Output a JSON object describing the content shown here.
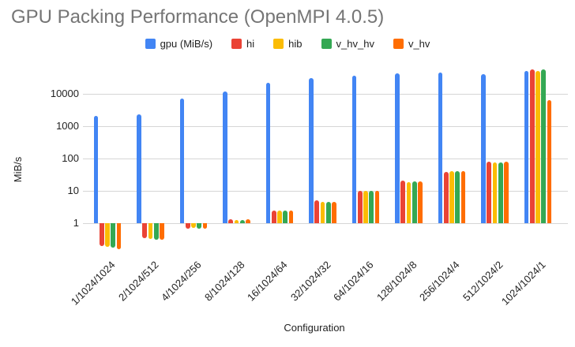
{
  "title": "GPU Packing Performance (OpenMPI 4.0.5)",
  "chart_data": {
    "type": "bar",
    "title": "GPU Packing Performance (OpenMPI 4.0.5)",
    "xlabel": "Configuration",
    "ylabel": "MiB/s",
    "y_scale": "log",
    "y_ticks": [
      1,
      10,
      100,
      1000,
      10000
    ],
    "ylim": [
      0.1,
      79000
    ],
    "grid": true,
    "legend_position": "top",
    "categories": [
      "1/1024/1024",
      "2/1024/512",
      "4/1024/256",
      "8/1024/128",
      "16/1024/64",
      "32/1024/32",
      "64/1024/16",
      "128/1024/8",
      "256/1024/4",
      "512/1024/2",
      "1024/1024/1"
    ],
    "series": [
      {
        "name": "gpu (MiB/s)",
        "color": "#4285F4",
        "values": [
          2150,
          2400,
          7500,
          12000,
          22000,
          31000,
          38000,
          43000,
          46000,
          41000,
          52000
        ]
      },
      {
        "name": "hi",
        "color": "#EA4335",
        "values": [
          0.2,
          0.34,
          0.66,
          1.3,
          2.5,
          5,
          10,
          21,
          38,
          80,
          57000
        ]
      },
      {
        "name": "hib",
        "color": "#FBBC04",
        "values": [
          0.18,
          0.32,
          0.7,
          1.25,
          2.4,
          4.5,
          10,
          19,
          40,
          78,
          53000
        ]
      },
      {
        "name": "v_hv_hv",
        "color": "#34A853",
        "values": [
          0.17,
          0.31,
          0.69,
          1.25,
          2.4,
          4.5,
          10,
          20,
          41,
          77,
          57000
        ]
      },
      {
        "name": "v_hv",
        "color": "#FF6D01",
        "values": [
          0.16,
          0.3,
          0.66,
          1.3,
          2.4,
          4.7,
          10,
          20,
          40,
          80,
          6500
        ]
      }
    ]
  }
}
